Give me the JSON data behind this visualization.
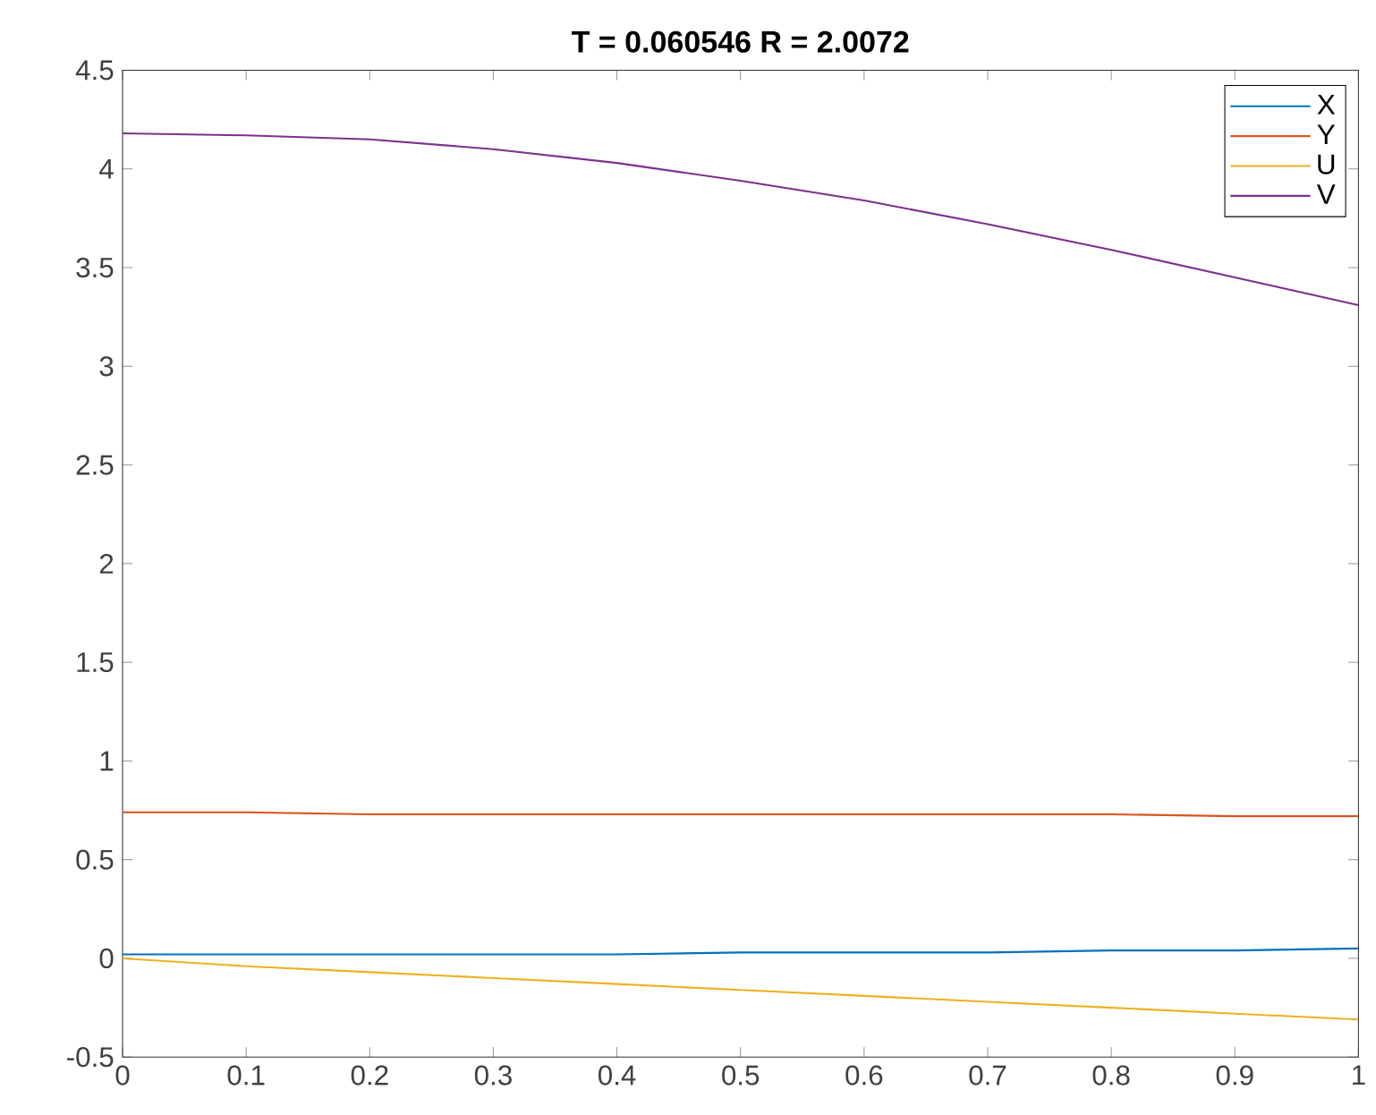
{
  "chart_data": {
    "type": "line",
    "title": "T = 0.060546 R = 2.0072",
    "x": [
      0,
      0.1,
      0.2,
      0.3,
      0.4,
      0.5,
      0.6,
      0.7,
      0.8,
      0.9,
      1
    ],
    "series": [
      {
        "name": "X",
        "color": "#0072bd",
        "values": [
          0.02,
          0.02,
          0.02,
          0.02,
          0.02,
          0.03,
          0.03,
          0.03,
          0.04,
          0.04,
          0.05
        ]
      },
      {
        "name": "Y",
        "color": "#d95319",
        "values": [
          0.74,
          0.74,
          0.73,
          0.73,
          0.73,
          0.73,
          0.73,
          0.73,
          0.73,
          0.72,
          0.72
        ]
      },
      {
        "name": "U",
        "color": "#edb120",
        "values": [
          0,
          -0.04,
          -0.07,
          -0.1,
          -0.13,
          -0.16,
          -0.19,
          -0.22,
          -0.25,
          -0.28,
          -0.31
        ]
      },
      {
        "name": "V",
        "color": "#7e2f8e",
        "values": [
          4.18,
          4.17,
          4.15,
          4.1,
          4.03,
          3.94,
          3.84,
          3.72,
          3.59,
          3.45,
          3.31
        ]
      }
    ],
    "xlim": [
      0,
      1
    ],
    "ylim": [
      -0.5,
      4.5
    ],
    "xticks": [
      0,
      0.1,
      0.2,
      0.3,
      0.4,
      0.5,
      0.6,
      0.7,
      0.8,
      0.9,
      1
    ],
    "yticks": [
      -0.5,
      0,
      0.5,
      1,
      1.5,
      2,
      2.5,
      3,
      3.5,
      4,
      4.5
    ],
    "grid": false,
    "legend": "top right",
    "marker": "none",
    "line_style": "solid"
  }
}
